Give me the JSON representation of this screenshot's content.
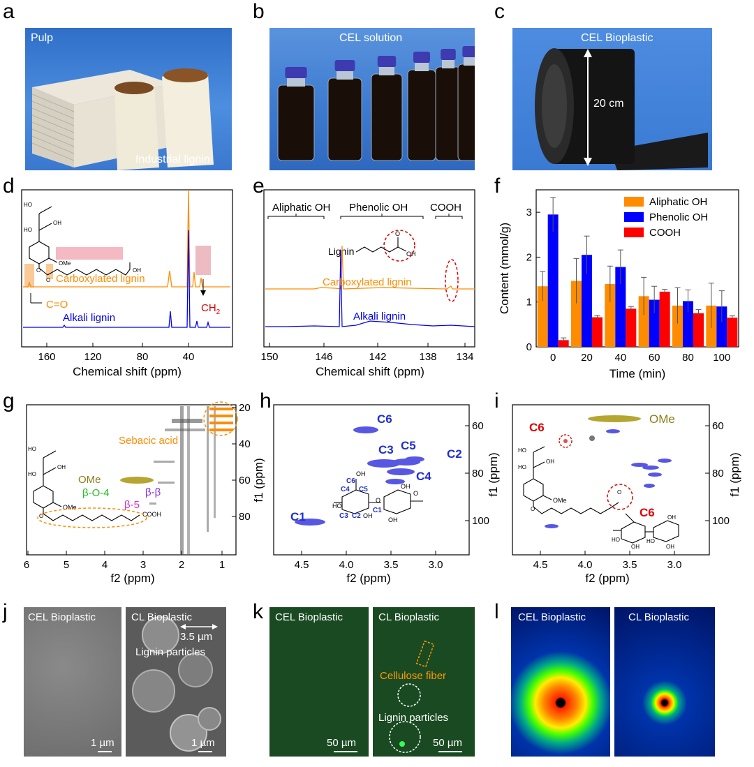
{
  "panels": {
    "a": {
      "letter": "a",
      "title": "Pulp",
      "caption": "Industrial lignin"
    },
    "b": {
      "letter": "b",
      "title": "CEL solution"
    },
    "c": {
      "letter": "c",
      "title": "CEL Bioplastic",
      "dimension": "20 cm"
    },
    "d": {
      "letter": "d",
      "xlabel": "Chemical shift (ppm)",
      "xticks": [
        "160",
        "120",
        "80",
        "40"
      ],
      "trace_top": "Carboxylated lignin",
      "trace_bottom": "Alkali lignin",
      "ann_co": "C=O",
      "ann_ch2": "CH",
      "ann_ch2_sub": "2",
      "struct": {
        "ho1": "HO",
        "ho2": "HO",
        "oh": "OH",
        "ome": "OMe",
        "o": "O",
        "o2": "O",
        "oh_end": "OH"
      }
    },
    "e": {
      "letter": "e",
      "xlabel": "Chemical shift (ppm)",
      "xticks": [
        "150",
        "146",
        "142",
        "138",
        "134"
      ],
      "regions": [
        "Aliphatic OH",
        "Phenolic OH",
        "COOH"
      ],
      "trace_top": "Carboxylated lignin",
      "trace_bottom": "Alkali lignin",
      "struct": {
        "lignin": "Lignin",
        "o": "O",
        "oh": "OH"
      }
    },
    "f": {
      "letter": "f",
      "xlabel": "Time (min)",
      "ylabel": "Content (mmol/g)"
    },
    "g": {
      "letter": "g",
      "xlabel": "f2 (ppm)",
      "ylabel": "f1 (ppm)",
      "xticks": [
        "6",
        "5",
        "4",
        "3",
        "2",
        "1"
      ],
      "yticks": [
        "20",
        "40",
        "60",
        "80"
      ],
      "labels": {
        "sebacic": "Sebacic acid",
        "ome": "OMe",
        "bo4": "β-O-4",
        "bb": "β-β",
        "b5": "β-5",
        "cooh": "COOH"
      },
      "struct": {
        "ho1": "HO",
        "ho2": "HO",
        "oh": "OH",
        "ome": "OMe",
        "o": "O"
      }
    },
    "h": {
      "letter": "h",
      "xlabel": "f2 (ppm)",
      "ylabel": "f1 (ppm)",
      "xticks": [
        "4.5",
        "4.0",
        "3.5",
        "3.0"
      ],
      "yticks": [
        "60",
        "80",
        "100"
      ],
      "labels": {
        "c1": "C1",
        "c2": "C2",
        "c3": "C3",
        "c4": "C4",
        "c5": "C5",
        "c6": "C6"
      },
      "struct": {
        "c6": "C6",
        "c4": "C4",
        "c5": "C5",
        "c3": "C3",
        "c2": "C2",
        "c1": "C1",
        "ho": "HO",
        "oh1": "OH",
        "oh2": "OH",
        "oh3": "OH",
        "o1": "O",
        "o2": "O",
        "o3": "O",
        "o4": "O",
        "oh4": "OH",
        "ho2": "HO"
      }
    },
    "i": {
      "letter": "i",
      "xlabel": "f2 (ppm)",
      "ylabel": "f1 (ppm)",
      "xticks": [
        "4.5",
        "4.0",
        "3.5",
        "3.0"
      ],
      "yticks": [
        "60",
        "80",
        "100"
      ],
      "labels": {
        "c6a": "C6",
        "c6b": "C6",
        "ome": "OMe"
      },
      "struct": {
        "ho1": "HO",
        "ho2": "HO",
        "oh": "OH",
        "ome": "OMe",
        "o": "O",
        "o2": "O",
        "ho3": "HO",
        "oh3": "OH",
        "ho4": "HO",
        "oh4": "OH",
        "oh5": "OH"
      }
    },
    "j": {
      "letter": "j",
      "left_title": "CEL Bioplastic",
      "right_title": "CL Bioplastic",
      "scale_left": "1 µm",
      "scale_right": "1 µm",
      "dim": "3.5 µm",
      "particles": "Lignin particles"
    },
    "k": {
      "letter": "k",
      "left_title": "CEL Bioplastic",
      "right_title": "CL Bioplastic",
      "scale_left": "50 µm",
      "scale_right": "50 µm",
      "fiber": "Cellulose fiber",
      "particles": "Lignin particles"
    },
    "l": {
      "letter": "l",
      "left_title": "CEL Bioplastic",
      "right_title": "CL Bioplastic"
    }
  },
  "chart_data": [
    {
      "type": "bar",
      "panel": "f",
      "categories": [
        "0",
        "20",
        "40",
        "60",
        "80",
        "100"
      ],
      "xlabel": "Time (min)",
      "ylabel": "Content (mmol/g)",
      "ylim": [
        0,
        3.5
      ],
      "yticks": [
        0,
        1,
        2,
        3
      ],
      "legend_position": "top-right",
      "series": [
        {
          "name": "Aliphatic OH",
          "color": "#ff8c00",
          "values": [
            1.35,
            1.47,
            1.4,
            1.13,
            0.92,
            0.92
          ],
          "errors": [
            0.33,
            0.5,
            0.4,
            0.42,
            0.4,
            0.5
          ]
        },
        {
          "name": "Phenolic OH",
          "color": "#0000ff",
          "values": [
            2.95,
            2.05,
            1.78,
            1.05,
            1.02,
            0.9
          ],
          "errors": [
            0.38,
            0.42,
            0.38,
            0.3,
            0.25,
            0.35
          ]
        },
        {
          "name": "COOH",
          "color": "#ff0000",
          "values": [
            0.15,
            0.66,
            0.85,
            1.23,
            0.75,
            0.65
          ],
          "errors": [
            0.05,
            0.04,
            0.05,
            0.05,
            0.08,
            0.04
          ]
        }
      ]
    }
  ]
}
